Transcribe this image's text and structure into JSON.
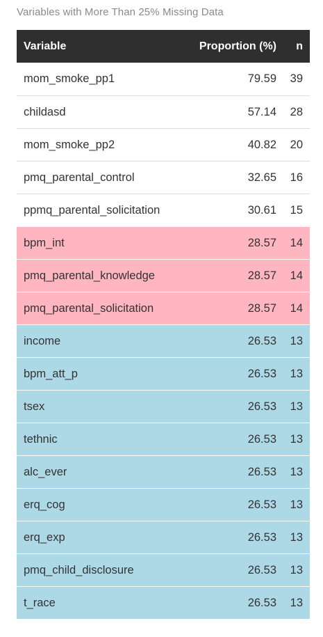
{
  "caption": "Variables with More Than 25% Missing Data",
  "columns": {
    "variable": "Variable",
    "proportion": "Proportion (%)",
    "n": "n"
  },
  "colors": {
    "header_bg": "#2f2f2f",
    "highlight_pink": "#ffb6c1",
    "highlight_blue": "#add8e6"
  },
  "rows": [
    {
      "variable": "mom_smoke_pp1",
      "proportion": "79.59",
      "n": "39",
      "highlight": "none"
    },
    {
      "variable": "childasd",
      "proportion": "57.14",
      "n": "28",
      "highlight": "none"
    },
    {
      "variable": "mom_smoke_pp2",
      "proportion": "40.82",
      "n": "20",
      "highlight": "none"
    },
    {
      "variable": "pmq_parental_control",
      "proportion": "32.65",
      "n": "16",
      "highlight": "none"
    },
    {
      "variable": "ppmq_parental_solicitation",
      "proportion": "30.61",
      "n": "15",
      "highlight": "none"
    },
    {
      "variable": "bpm_int",
      "proportion": "28.57",
      "n": "14",
      "highlight": "pink"
    },
    {
      "variable": "pmq_parental_knowledge",
      "proportion": "28.57",
      "n": "14",
      "highlight": "pink"
    },
    {
      "variable": "pmq_parental_solicitation",
      "proportion": "28.57",
      "n": "14",
      "highlight": "pink"
    },
    {
      "variable": "income",
      "proportion": "26.53",
      "n": "13",
      "highlight": "blue"
    },
    {
      "variable": "bpm_att_p",
      "proportion": "26.53",
      "n": "13",
      "highlight": "blue"
    },
    {
      "variable": "tsex",
      "proportion": "26.53",
      "n": "13",
      "highlight": "blue"
    },
    {
      "variable": "tethnic",
      "proportion": "26.53",
      "n": "13",
      "highlight": "blue"
    },
    {
      "variable": "alc_ever",
      "proportion": "26.53",
      "n": "13",
      "highlight": "blue"
    },
    {
      "variable": "erq_cog",
      "proportion": "26.53",
      "n": "13",
      "highlight": "blue"
    },
    {
      "variable": "erq_exp",
      "proportion": "26.53",
      "n": "13",
      "highlight": "blue"
    },
    {
      "variable": "pmq_child_disclosure",
      "proportion": "26.53",
      "n": "13",
      "highlight": "blue"
    },
    {
      "variable": "t_race",
      "proportion": "26.53",
      "n": "13",
      "highlight": "blue"
    }
  ]
}
